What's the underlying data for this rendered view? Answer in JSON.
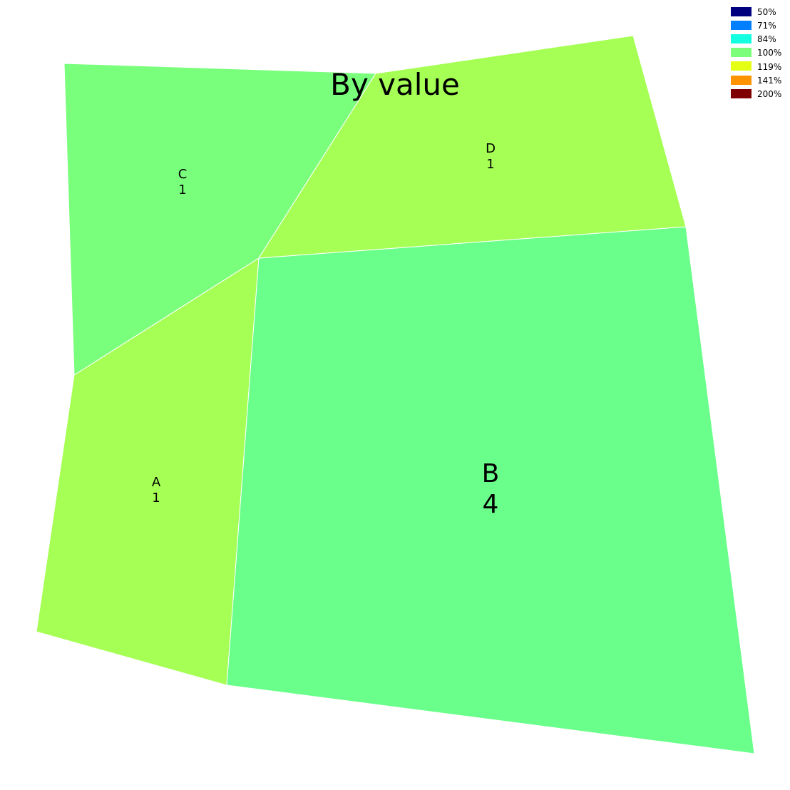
{
  "chart_data": {
    "type": "voronoi-treemap",
    "title": "By value",
    "cells": [
      {
        "name": "A",
        "value": 1,
        "value_label": "1",
        "color": "#a5ff54"
      },
      {
        "name": "B",
        "value": 4,
        "value_label": "4",
        "color": "#6aff8b"
      },
      {
        "name": "C",
        "value": 1,
        "value_label": "1",
        "color": "#79ff7b"
      },
      {
        "name": "D",
        "value": 1,
        "value_label": "1",
        "color": "#a5ff54"
      }
    ],
    "legend": {
      "placement": "top-right",
      "entries": [
        {
          "label": "50%",
          "color": "#00007f"
        },
        {
          "label": "71%",
          "color": "#0080ff"
        },
        {
          "label": "84%",
          "color": "#15ffe1"
        },
        {
          "label": "100%",
          "color": "#7bff7b"
        },
        {
          "label": "119%",
          "color": "#e4ff13"
        },
        {
          "label": "141%",
          "color": "#ff9400"
        },
        {
          "label": "200%",
          "color": "#7f0000"
        }
      ]
    }
  }
}
